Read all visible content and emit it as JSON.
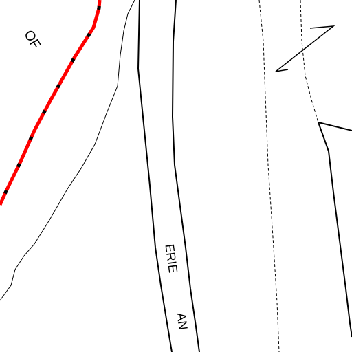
{
  "map": {
    "background_color": "#ffffff",
    "line_color": "#000000",
    "boundary_color": "#ff0000",
    "labels": {
      "boundary": "OF",
      "canal_west": "ERIE",
      "canal_east": "AN"
    }
  }
}
